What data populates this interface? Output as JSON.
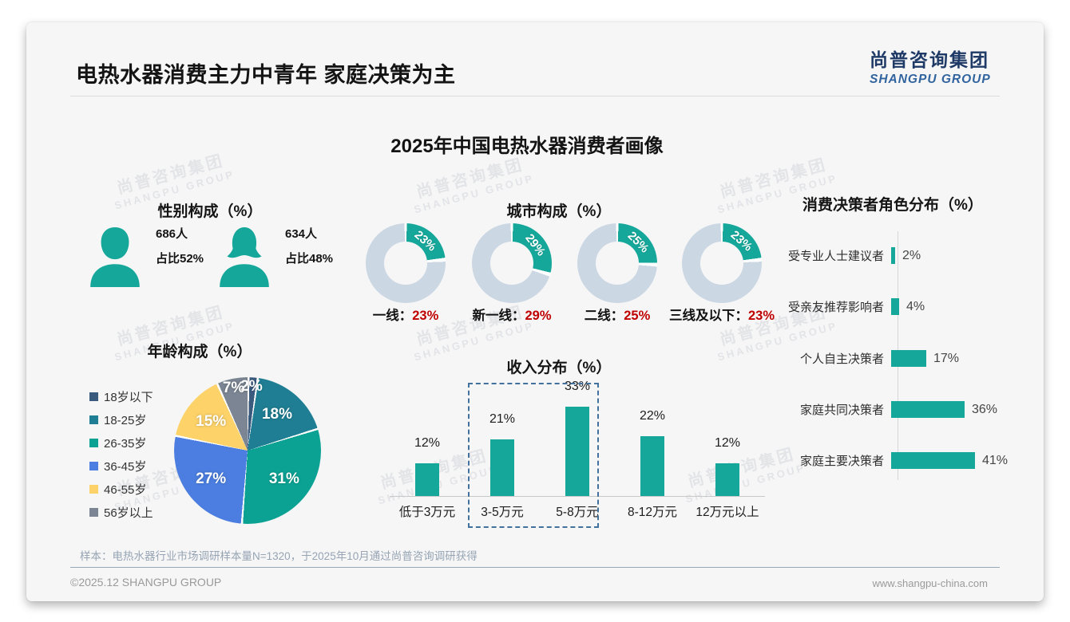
{
  "header": {
    "title": "电热水器消费主力中青年 家庭决策为主",
    "logo_cn": "尚普咨询集团",
    "logo_en": "SHANGPU GROUP"
  },
  "main_title": "2025年中国电热水器消费者画像",
  "watermark": {
    "line1": "尚普咨询集团",
    "line2": "SHANGPU GROUP"
  },
  "colors": {
    "accent_teal": "#14a79a",
    "value_red": "#c00000",
    "ring_rest": "#ccd7e4",
    "logo_navy": "#1f3a66",
    "highlight_box_blue": "#41719c"
  },
  "chart_data": [
    {
      "id": "gender",
      "type": "table",
      "title": "性别构成（%）",
      "rows": [
        {
          "icon": "male",
          "count": "686人",
          "share": "占比52%"
        },
        {
          "icon": "female",
          "count": "634人",
          "share": "占比48%"
        }
      ]
    },
    {
      "id": "age",
      "type": "pie",
      "title": "年龄构成（%）",
      "labels": [
        "18岁以下",
        "18-25岁",
        "26-35岁",
        "36-45岁",
        "46-55岁",
        "56岁以上"
      ],
      "values": [
        2,
        18,
        31,
        27,
        15,
        7
      ],
      "colors": [
        "#3a5a7e",
        "#1f7e93",
        "#0ba294",
        "#4b7ee0",
        "#fcd269",
        "#7b8593"
      ],
      "data_label_suffix": "%",
      "legend_position": "left"
    },
    {
      "id": "city",
      "type": "donut",
      "title": "城市构成（%）",
      "categories": [
        "一线",
        "新一线",
        "二线",
        "三线及以下"
      ],
      "values": [
        23,
        29,
        25,
        23
      ],
      "label_separator": "：",
      "accent": "#14a79a",
      "rest_color": "#ccd7e4",
      "value_color": "#c00000"
    },
    {
      "id": "income",
      "type": "bar",
      "title": "收入分布（%）",
      "categories": [
        "低于3万元",
        "3-5万元",
        "5-8万元",
        "8-12万元",
        "12万元以上"
      ],
      "values": [
        12,
        21,
        33,
        22,
        12
      ],
      "bar_color": "#14a79a",
      "ylim": [
        0,
        35
      ],
      "highlight": {
        "categories": [
          "3-5万元",
          "5-8万元"
        ],
        "style": "dashed-box",
        "color": "#41719c"
      }
    },
    {
      "id": "decision",
      "type": "bar-horizontal",
      "title": "消费决策者角色分布（%）",
      "categories": [
        "受专业人士建议者",
        "受亲友推荐影响者",
        "个人自主决策者",
        "家庭共同决策者",
        "家庭主要决策者"
      ],
      "values": [
        2,
        4,
        17,
        36,
        41
      ],
      "bar_color": "#14a79a",
      "xlim": [
        0,
        45
      ]
    }
  ],
  "footer": {
    "note": "样本：电热水器行业市场调研样本量N=1320，于2025年10月通过尚普咨询调研获得",
    "copyright": "©2025.12 SHANGPU GROUP",
    "website": "www.shangpu-china.com"
  }
}
